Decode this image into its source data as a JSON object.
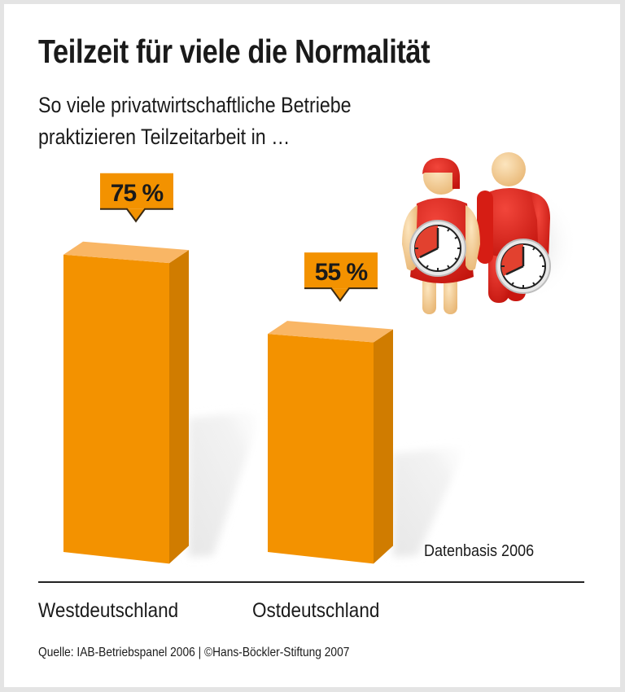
{
  "title": "Teilzeit für viele die Normalität",
  "subtitle_lines": [
    "So viele privatwirtschaftliche Betriebe",
    "praktizieren Teilzeitarbeit in …"
  ],
  "note": "Datenbasis 2006",
  "source": "Quelle: IAB-Betriebspanel 2006 | ©Hans-Böckler-Stiftung 2007",
  "colors": {
    "bar_front": "#F39200",
    "bar_side": "#D07C00",
    "bar_top": "#F9B665",
    "callout": "#F39200",
    "text": "#1a1a1a",
    "figure_red": "#E2231A",
    "figure_skin": "#F6D39A"
  },
  "illustration": {
    "description": "woman-and-man-figures-holding-clocks"
  },
  "chart_data": {
    "type": "bar",
    "title": "Teilzeit für viele die Normalität",
    "subtitle": "So viele privatwirtschaftliche Betriebe praktizieren Teilzeitarbeit in …",
    "categories": [
      "Westdeutschland",
      "Ostdeutschland"
    ],
    "values": [
      75,
      55
    ],
    "labels": [
      "75 %",
      "55 %"
    ],
    "unit": "%",
    "xlabel": "",
    "ylabel": "",
    "ylim": [
      0,
      100
    ],
    "grid": false,
    "style": "3d-columns",
    "annotations": [
      "Datenbasis 2006"
    ],
    "source": "Quelle: IAB-Betriebspanel 2006 | ©Hans-Böckler-Stiftung 2007"
  }
}
